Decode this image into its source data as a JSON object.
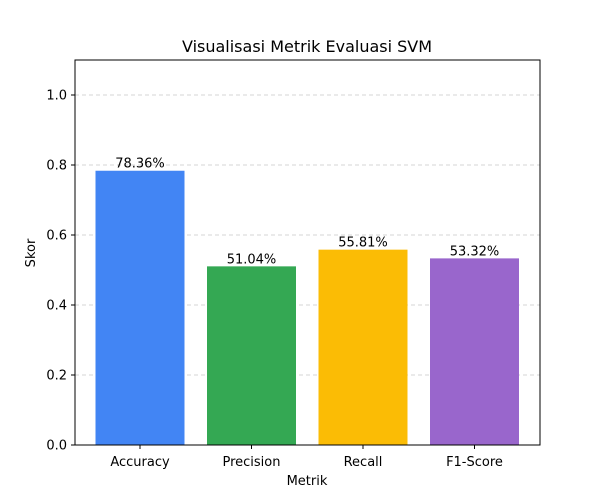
{
  "chart_data": {
    "type": "bar",
    "title": "Visualisasi Metrik Evaluasi SVM",
    "xlabel": "Metrik",
    "ylabel": "Skor",
    "categories": [
      "Accuracy",
      "Precision",
      "Recall",
      "F1-Score"
    ],
    "values": [
      0.7836,
      0.5104,
      0.5581,
      0.5332
    ],
    "value_labels": [
      "78.36%",
      "51.04%",
      "55.81%",
      "53.32%"
    ],
    "colors": [
      "#4285F4",
      "#34A853",
      "#FBBC05",
      "#9966CC"
    ],
    "ylim": [
      0,
      1.1
    ],
    "yticks": [
      0.0,
      0.2,
      0.4,
      0.6,
      0.8,
      1.0
    ],
    "ytick_labels": [
      "0.0",
      "0.2",
      "0.4",
      "0.6",
      "0.8",
      "1.0"
    ],
    "grid": {
      "axis": "y",
      "style": "dashed",
      "color": "#c8c8c8"
    }
  }
}
